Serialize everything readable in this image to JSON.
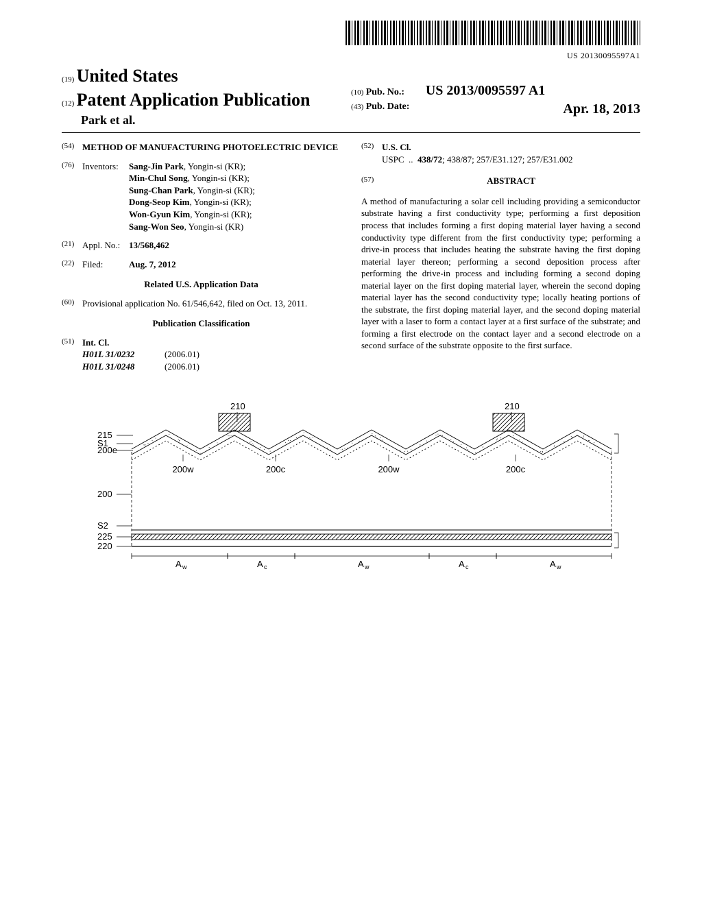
{
  "barcode_number": "US 20130095597A1",
  "header": {
    "country_num": "(19)",
    "country": "United States",
    "pub_type_num": "(12)",
    "pub_type": "Patent Application Publication",
    "authors_line": "Park et al.",
    "pubno_num": "(10)",
    "pubno_label": "Pub. No.:",
    "pubno_val": "US 2013/0095597 A1",
    "pubdate_num": "(43)",
    "pubdate_label": "Pub. Date:",
    "pubdate_val": "Apr. 18, 2013"
  },
  "title": {
    "num": "(54)",
    "text": "METHOD OF MANUFACTURING PHOTOELECTRIC DEVICE"
  },
  "inventors": {
    "num": "(76)",
    "label": "Inventors:",
    "list": [
      {
        "name": "Sang-Jin Park",
        "loc": "Yongin-si (KR)"
      },
      {
        "name": "Min-Chul Song",
        "loc": "Yongin-si (KR)"
      },
      {
        "name": "Sung-Chan Park",
        "loc": "Yongin-si (KR)"
      },
      {
        "name": "Dong-Seop Kim",
        "loc": "Yongin-si (KR)"
      },
      {
        "name": "Won-Gyun Kim",
        "loc": "Yongin-si (KR)"
      },
      {
        "name": "Sang-Won Seo",
        "loc": "Yongin-si (KR)"
      }
    ]
  },
  "appl": {
    "num": "(21)",
    "label": "Appl. No.:",
    "val": "13/568,462"
  },
  "filed": {
    "num": "(22)",
    "label": "Filed:",
    "val": "Aug. 7, 2012"
  },
  "related_head": "Related U.S. Application Data",
  "provisional": {
    "num": "(60)",
    "text": "Provisional application No. 61/546,642, filed on Oct. 13, 2011."
  },
  "pubclass_head": "Publication Classification",
  "intcl": {
    "num": "(51)",
    "label": "Int. Cl.",
    "items": [
      {
        "cls": "H01L 31/0232",
        "ver": "(2006.01)"
      },
      {
        "cls": "H01L 31/0248",
        "ver": "(2006.01)"
      }
    ]
  },
  "uscl": {
    "num": "(52)",
    "label": "U.S. Cl.",
    "prefix": "USPC",
    "dots": "..",
    "val": "438/72; 438/87; 257/E31.127; 257/E31.002"
  },
  "abstract": {
    "num": "(57)",
    "head": "ABSTRACT",
    "body": "A method of manufacturing a solar cell including providing a semiconductor substrate having a first conductivity type; performing a first deposition process that includes forming a first doping material layer having a second conductivity type different from the first conductivity type; performing a drive-in process that includes heating the substrate having the first doping material layer thereon; performing a second deposition process after performing the drive-in process and including forming a second doping material layer on the first doping material layer, wherein the second doping material layer has the second conductivity type; locally heating portions of the substrate, the first doping material layer, and the second doping material layer with a laser to form a contact layer at a first surface of the substrate; and forming a first electrode on the contact layer and a second electrode on a second surface of the substrate opposite to the first surface."
  },
  "figure": {
    "labels": {
      "r210a": "210",
      "r210b": "210",
      "l215": "215",
      "lS1": "S1",
      "l200e": "200e",
      "l200": "200",
      "lS2": "S2",
      "l225": "225",
      "l220": "220",
      "l200w_a": "200w",
      "l200c_a": "200c",
      "l200w_b": "200w",
      "l200c_b": "200c",
      "Aw1": "A",
      "Aw1s": "w",
      "Ac1": "A",
      "Ac1s": "c",
      "Aw2": "A",
      "Aw2s": "w",
      "Ac2": "A",
      "Ac2s": "c",
      "Aw3": "A",
      "Aw3s": "w"
    },
    "style": {
      "stroke": "#000000",
      "stroke_thin": 0.8,
      "stroke_med": 1.2,
      "hatch_spacing": 6,
      "bg": "#ffffff",
      "font_family": "Arial, Helvetica, sans-serif",
      "label_fontsize": 13,
      "sub_fontsize": 9,
      "zigzag_peaks": 14,
      "zigzag_amplitude": 14
    }
  }
}
